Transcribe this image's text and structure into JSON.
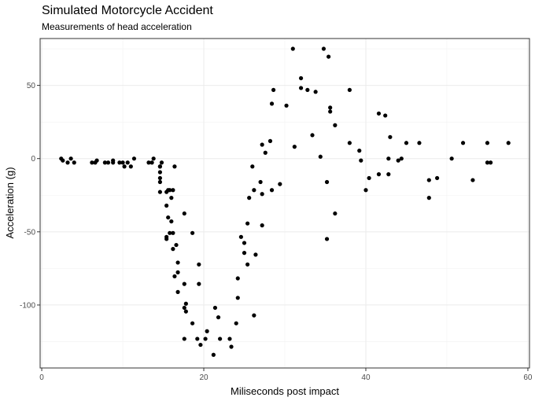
{
  "chart_data": {
    "type": "scatter",
    "title": "Simulated Motorcycle Accident",
    "subtitle": "Measurements of head acceleration",
    "xlabel": "Miliseconds post impact",
    "ylabel": "Acceleration (g)",
    "xlim": [
      -0.2,
      60.2
    ],
    "ylim": [
      -143,
      82
    ],
    "x_ticks": [
      0,
      20,
      40,
      60
    ],
    "y_ticks": [
      -100,
      -50,
      0,
      50
    ],
    "grid": true,
    "point_color": "#000000",
    "points": [
      [
        2.4,
        0.0
      ],
      [
        2.6,
        -1.3
      ],
      [
        3.2,
        -2.7
      ],
      [
        3.6,
        0.0
      ],
      [
        4.0,
        -2.7
      ],
      [
        6.2,
        -2.7
      ],
      [
        6.6,
        -2.7
      ],
      [
        6.8,
        -1.3
      ],
      [
        7.8,
        -2.7
      ],
      [
        8.2,
        -2.7
      ],
      [
        8.8,
        -1.3
      ],
      [
        8.8,
        -2.7
      ],
      [
        9.6,
        -2.7
      ],
      [
        10.0,
        -2.7
      ],
      [
        10.2,
        -5.4
      ],
      [
        10.6,
        -2.7
      ],
      [
        11.0,
        -5.4
      ],
      [
        11.4,
        0.0
      ],
      [
        13.2,
        -2.7
      ],
      [
        13.6,
        -2.7
      ],
      [
        13.8,
        0.0
      ],
      [
        14.6,
        -13.3
      ],
      [
        14.6,
        -5.4
      ],
      [
        14.6,
        -5.4
      ],
      [
        14.6,
        -9.3
      ],
      [
        14.6,
        -16.0
      ],
      [
        14.6,
        -22.8
      ],
      [
        14.8,
        -2.7
      ],
      [
        15.4,
        -22.8
      ],
      [
        15.4,
        -32.1
      ],
      [
        15.4,
        -53.5
      ],
      [
        15.4,
        -54.9
      ],
      [
        15.6,
        -40.2
      ],
      [
        15.6,
        -21.5
      ],
      [
        15.8,
        -21.5
      ],
      [
        15.8,
        -50.8
      ],
      [
        16.0,
        -42.9
      ],
      [
        16.0,
        -26.8
      ],
      [
        16.2,
        -21.5
      ],
      [
        16.2,
        -50.8
      ],
      [
        16.2,
        -61.7
      ],
      [
        16.4,
        -5.4
      ],
      [
        16.4,
        -80.4
      ],
      [
        16.6,
        -59.0
      ],
      [
        16.8,
        -71.0
      ],
      [
        16.8,
        -91.1
      ],
      [
        16.8,
        -77.7
      ],
      [
        17.6,
        -37.5
      ],
      [
        17.6,
        -85.6
      ],
      [
        17.6,
        -123.1
      ],
      [
        17.6,
        -101.9
      ],
      [
        17.8,
        -99.1
      ],
      [
        17.8,
        -104.4
      ],
      [
        18.6,
        -112.5
      ],
      [
        18.6,
        -50.8
      ],
      [
        19.2,
        -123.1
      ],
      [
        19.4,
        -85.6
      ],
      [
        19.4,
        -72.3
      ],
      [
        19.6,
        -127.2
      ],
      [
        20.2,
        -123.1
      ],
      [
        20.4,
        -117.9
      ],
      [
        21.2,
        -134.0
      ],
      [
        21.4,
        -101.9
      ],
      [
        21.8,
        -108.4
      ],
      [
        22.0,
        -123.1
      ],
      [
        23.2,
        -123.1
      ],
      [
        23.4,
        -128.5
      ],
      [
        24.0,
        -112.5
      ],
      [
        24.2,
        -95.1
      ],
      [
        24.2,
        -81.8
      ],
      [
        24.6,
        -53.5
      ],
      [
        25.0,
        -64.4
      ],
      [
        25.0,
        -57.6
      ],
      [
        25.4,
        -72.3
      ],
      [
        25.4,
        -44.3
      ],
      [
        25.6,
        -26.8
      ],
      [
        26.0,
        -5.4
      ],
      [
        26.2,
        -107.1
      ],
      [
        26.2,
        -21.5
      ],
      [
        26.4,
        -65.6
      ],
      [
        27.0,
        -16.0
      ],
      [
        27.2,
        -45.6
      ],
      [
        27.2,
        -24.2
      ],
      [
        27.2,
        9.5
      ],
      [
        27.6,
        4.0
      ],
      [
        28.2,
        12.0
      ],
      [
        28.4,
        -21.5
      ],
      [
        28.4,
        37.5
      ],
      [
        28.6,
        46.9
      ],
      [
        29.4,
        -17.4
      ],
      [
        30.2,
        36.2
      ],
      [
        31.0,
        75.0
      ],
      [
        31.2,
        8.1
      ],
      [
        32.0,
        54.9
      ],
      [
        32.0,
        48.2
      ],
      [
        32.8,
        46.9
      ],
      [
        33.4,
        16.0
      ],
      [
        33.8,
        45.6
      ],
      [
        34.4,
        1.3
      ],
      [
        34.8,
        75.0
      ],
      [
        35.2,
        -16.0
      ],
      [
        35.2,
        -54.9
      ],
      [
        35.4,
        69.6
      ],
      [
        35.6,
        34.8
      ],
      [
        35.6,
        32.1
      ],
      [
        36.2,
        -37.5
      ],
      [
        36.2,
        22.8
      ],
      [
        38.0,
        46.9
      ],
      [
        38.0,
        10.7
      ],
      [
        39.2,
        5.4
      ],
      [
        39.4,
        -1.3
      ],
      [
        40.0,
        -21.5
      ],
      [
        40.4,
        -13.3
      ],
      [
        41.6,
        30.8
      ],
      [
        41.6,
        -10.7
      ],
      [
        42.4,
        29.4
      ],
      [
        42.8,
        0.0
      ],
      [
        42.8,
        -10.7
      ],
      [
        43.0,
        14.7
      ],
      [
        44.0,
        -1.3
      ],
      [
        44.4,
        0.0
      ],
      [
        45.0,
        10.7
      ],
      [
        46.6,
        10.7
      ],
      [
        47.8,
        -26.8
      ],
      [
        47.8,
        -14.7
      ],
      [
        48.8,
        -13.3
      ],
      [
        50.6,
        0.0
      ],
      [
        52.0,
        10.7
      ],
      [
        53.2,
        -14.7
      ],
      [
        55.0,
        -2.7
      ],
      [
        55.0,
        10.7
      ],
      [
        55.4,
        -2.7
      ],
      [
        57.6,
        10.7
      ]
    ]
  }
}
